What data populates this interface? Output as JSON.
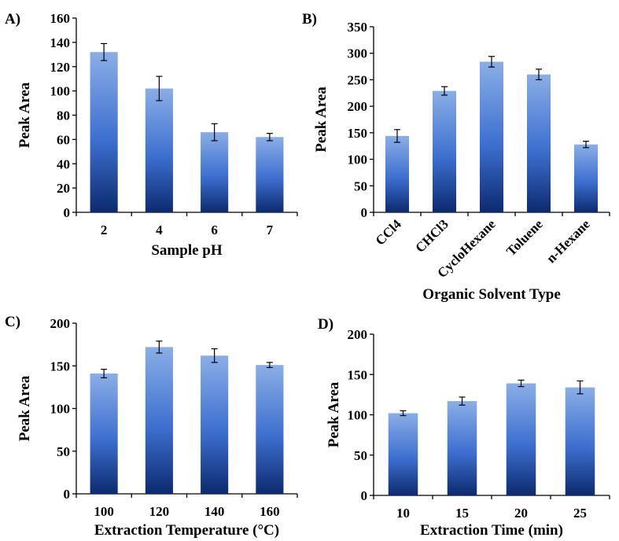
{
  "chart_data": [
    {
      "type": "bar",
      "panel_label": "A)",
      "categories": [
        "2",
        "4",
        "6",
        "7"
      ],
      "values": [
        132,
        102,
        66,
        62
      ],
      "errors": [
        7,
        10,
        7,
        3
      ],
      "xlabel": "Sample pH",
      "ylabel": "Peak Area",
      "ylim": [
        0,
        160
      ],
      "yticks": [
        "0",
        "20",
        "40",
        "60",
        "80",
        "100",
        "120",
        "140",
        "160"
      ],
      "grid": false,
      "legend": "none",
      "rotate_x_labels": false
    },
    {
      "type": "bar",
      "panel_label": "B)",
      "categories": [
        "CCl4",
        "CHCl3",
        "CycloHexane",
        "Toluene",
        "n-Hexane"
      ],
      "values": [
        144,
        229,
        284,
        260,
        128
      ],
      "errors": [
        12,
        8,
        10,
        10,
        6
      ],
      "xlabel": "Organic Solvent Type",
      "ylabel": "Peak Area",
      "ylim": [
        0,
        350
      ],
      "yticks": [
        "0",
        "50",
        "100",
        "150",
        "200",
        "250",
        "300",
        "350"
      ],
      "grid": false,
      "legend": "none",
      "rotate_x_labels": true
    },
    {
      "type": "bar",
      "panel_label": "C)",
      "categories": [
        "100",
        "120",
        "140",
        "160"
      ],
      "values": [
        141,
        172,
        162,
        151
      ],
      "errors": [
        5,
        7,
        8,
        3
      ],
      "xlabel": "Extraction Temperature (°C)",
      "ylabel": "Peak Area",
      "ylim": [
        0,
        200
      ],
      "yticks": [
        "0",
        "50",
        "100",
        "150",
        "200"
      ],
      "grid": false,
      "legend": "none",
      "rotate_x_labels": false
    },
    {
      "type": "bar",
      "panel_label": "D)",
      "categories": [
        "10",
        "15",
        "20",
        "25"
      ],
      "values": [
        102,
        117,
        139,
        134
      ],
      "errors": [
        3,
        5,
        4,
        8
      ],
      "xlabel": "Extraction Time (min)",
      "ylabel": "Peak Area",
      "ylim": [
        0,
        200
      ],
      "yticks": [
        "0",
        "50",
        "100",
        "150",
        "200"
      ],
      "grid": false,
      "legend": "none",
      "rotate_x_labels": false
    }
  ],
  "colors": {
    "bar_top": "#8aaee6",
    "bar_mid": "#3d6fd0",
    "bar_bottom": "#0c2a6e",
    "axis": "#000000"
  }
}
